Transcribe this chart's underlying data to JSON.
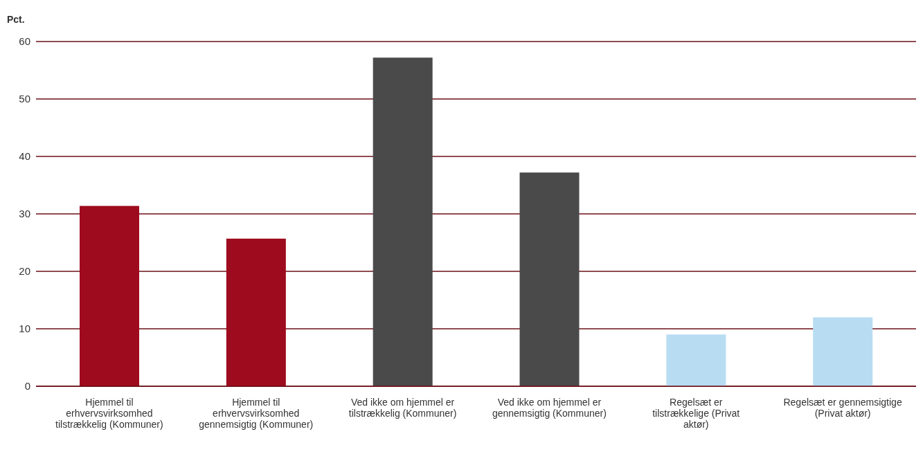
{
  "chart_data": {
    "type": "bar",
    "ylabel": "Pct.",
    "categories": [
      "Hjemmel til erhvervsvirksomhed tilstrækkelig (Kommuner)",
      "Hjemmel til erhvervsvirksomhed gennemsigtig (Kommuner)",
      "Ved ikke om hjemmel er tilstrækkelig (Kommuner)",
      "Ved ikke om hjemmel er gennemsigtig (Kommuner)",
      "Regelsæt er tilstrækkelige (Privat aktør)",
      "Regelsæt er gennemsigtige (Privat aktør)"
    ],
    "values": [
      31.4,
      25.7,
      57.2,
      37.2,
      9.0,
      12.0
    ],
    "colors": [
      "#9e0b1e",
      "#9e0b1e",
      "#4a4a4a",
      "#4a4a4a",
      "#b8dcf2",
      "#b8dcf2"
    ],
    "ylim": [
      0,
      60
    ],
    "yticks": [
      0,
      10,
      20,
      30,
      40,
      50,
      60
    ],
    "grid": "y",
    "legend": false
  }
}
